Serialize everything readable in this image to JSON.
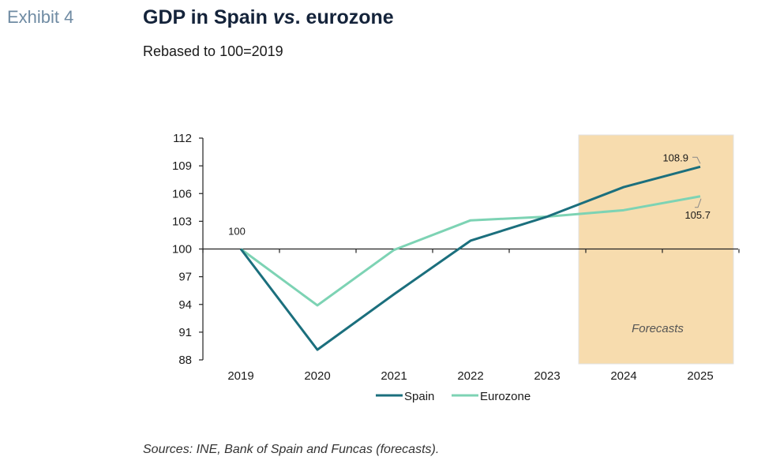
{
  "header": {
    "exhibit": "Exhibit 4",
    "title_prefix": "GDP in Spain ",
    "title_emph": "vs",
    "title_suffix": ". eurozone",
    "subtitle": "Rebased to 100=2019"
  },
  "footer": {
    "source": "Sources: INE, Bank of Spain and Funcas (forecasts)."
  },
  "chart_data": {
    "type": "line",
    "x": [
      "2019",
      "2020",
      "2021",
      "2022",
      "2023",
      "2024",
      "2025"
    ],
    "ylim": [
      88,
      112
    ],
    "yticks": [
      88,
      91,
      94,
      97,
      100,
      103,
      106,
      109,
      112
    ],
    "series": [
      {
        "name": "Spain",
        "values": [
          100,
          89.1,
          95.1,
          100.9,
          103.5,
          106.7,
          108.9
        ],
        "color": "#1b6f7d"
      },
      {
        "name": "Eurozone",
        "values": [
          100,
          93.9,
          99.9,
          103.1,
          103.5,
          104.2,
          105.7
        ],
        "color": "#7dd3b4"
      }
    ],
    "forecast_region": {
      "label": "Forecasts",
      "from": "2024",
      "to": "2025",
      "color": "#f7dcae"
    },
    "annotations": [
      {
        "text": "100",
        "x": "2019",
        "y": 100
      },
      {
        "text": "108.9",
        "x": "2025",
        "y": 108.9
      },
      {
        "text": "105.7",
        "x": "2025",
        "y": 105.7
      }
    ],
    "legend_position": "bottom",
    "grid": false
  }
}
